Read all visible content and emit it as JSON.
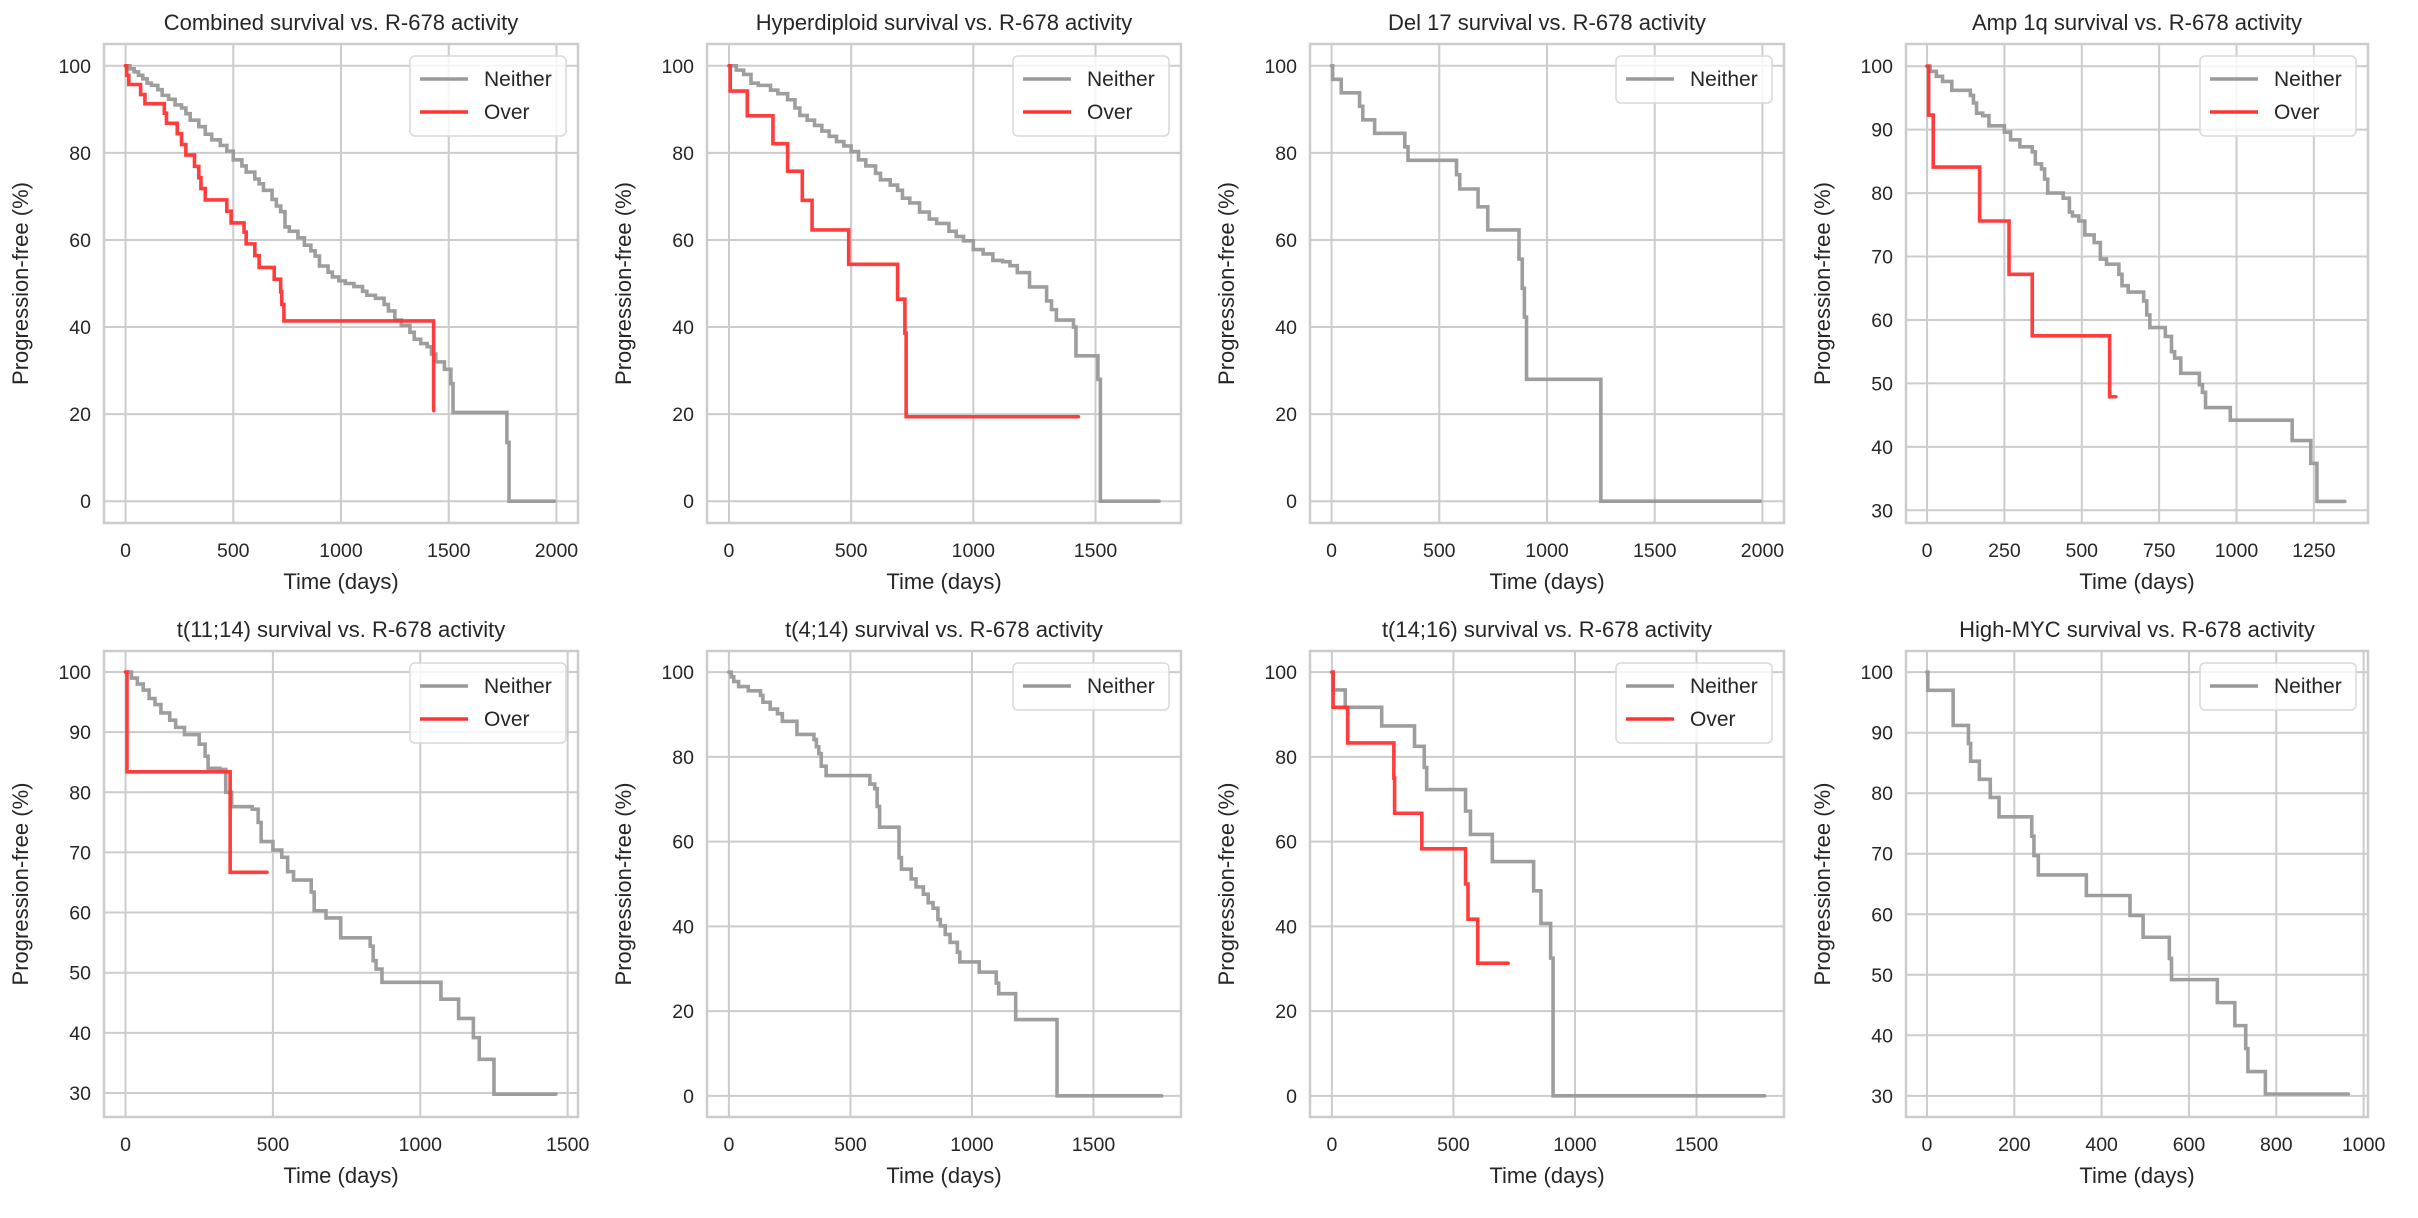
{
  "figure": {
    "colors": {
      "Neither": "#999999",
      "Over": "#ff3333",
      "grid": "#cccccc"
    }
  },
  "chart_data": [
    {
      "type": "line",
      "title": "Combined survival vs. R-678 activity",
      "xlabel": "Time (days)",
      "ylabel": "Progression-free (%)",
      "xlim": [
        -100,
        2100
      ],
      "ylim": [
        -5,
        105
      ],
      "xticks": [
        0,
        500,
        1000,
        1500,
        2000
      ],
      "yticks": [
        0,
        20,
        40,
        60,
        80,
        100
      ],
      "grid": true,
      "legend": "top-right",
      "series": [
        {
          "name": "Neither",
          "step": true,
          "x": [
            0,
            20,
            40,
            60,
            80,
            100,
            120,
            150,
            170,
            200,
            230,
            260,
            280,
            300,
            340,
            370,
            400,
            440,
            470,
            500,
            540,
            560,
            600,
            620,
            640,
            680,
            700,
            720,
            740,
            760,
            800,
            830,
            860,
            880,
            900,
            940,
            960,
            990,
            1020,
            1060,
            1100,
            1120,
            1160,
            1200,
            1220,
            1250,
            1280,
            1320,
            1340,
            1370,
            1400,
            1420,
            1440,
            1480,
            1500,
            1510,
            1520,
            1760,
            1770,
            1780,
            1990
          ],
          "y": [
            100,
            99.3,
            98.6,
            97.8,
            97,
            96,
            95.5,
            94.5,
            93.2,
            92.3,
            91,
            90.3,
            89,
            87.5,
            86,
            84.3,
            83,
            81.7,
            80.4,
            78.4,
            77,
            75.6,
            74,
            72.9,
            71.4,
            69.3,
            67.8,
            66.5,
            63,
            62,
            60.5,
            58.8,
            57.5,
            56.3,
            54,
            52.6,
            51.5,
            50.6,
            50,
            49.3,
            48.2,
            47.3,
            46.6,
            45.2,
            43.7,
            41.6,
            40.4,
            38.8,
            37.2,
            36.2,
            35.5,
            33.8,
            32,
            30.3,
            30.3,
            27,
            20.4,
            20.4,
            13.5,
            0,
            0
          ]
        },
        {
          "name": "Over",
          "step": true,
          "x": [
            0,
            5,
            15,
            70,
            90,
            180,
            190,
            240,
            260,
            280,
            320,
            340,
            350,
            370,
            470,
            490,
            550,
            560,
            600,
            620,
            690,
            720,
            725,
            735,
            1430
          ],
          "y": [
            100,
            97.8,
            95.7,
            93.4,
            91.3,
            89.1,
            86.8,
            84.4,
            81.9,
            79.5,
            76.9,
            74.3,
            71.8,
            69.2,
            66.6,
            63.9,
            61.8,
            59.1,
            56.4,
            53.7,
            51,
            48.1,
            45.2,
            41.4,
            20.8
          ]
        }
      ]
    },
    {
      "type": "line",
      "title": "Hyperdiploid survival vs. R-678 activity",
      "xlabel": "Time (days)",
      "ylabel": "Progression-free (%)",
      "xlim": [
        -90,
        1850
      ],
      "ylim": [
        -5,
        105
      ],
      "xticks": [
        0,
        500,
        1000,
        1500
      ],
      "yticks": [
        0,
        20,
        40,
        60,
        80,
        100
      ],
      "grid": true,
      "legend": "top-right",
      "series": [
        {
          "name": "Neither",
          "step": true,
          "x": [
            0,
            30,
            60,
            90,
            120,
            170,
            200,
            240,
            270,
            290,
            320,
            350,
            380,
            410,
            440,
            470,
            500,
            530,
            560,
            600,
            620,
            660,
            690,
            710,
            740,
            780,
            820,
            850,
            900,
            930,
            960,
            1000,
            1040,
            1080,
            1120,
            1150,
            1180,
            1230,
            1270,
            1300,
            1320,
            1340,
            1360,
            1400,
            1410,
            1420,
            1500,
            1510,
            1520,
            1760
          ],
          "y": [
            100,
            99,
            98,
            96,
            95.5,
            94.4,
            93.6,
            92.2,
            90.3,
            88.6,
            87.5,
            86.3,
            85,
            83.8,
            82.6,
            81.6,
            80.3,
            78.4,
            77,
            75.3,
            73.8,
            72.6,
            71.4,
            69.6,
            68.5,
            66.4,
            64.8,
            63.8,
            62,
            60.8,
            59.8,
            57.8,
            56.8,
            55.3,
            55,
            54.1,
            52.5,
            49.2,
            49.2,
            46,
            44,
            41.6,
            41.6,
            41.6,
            40,
            33.4,
            33.4,
            28,
            0,
            0
          ]
        },
        {
          "name": "Over",
          "step": true,
          "x": [
            0,
            5,
            75,
            180,
            240,
            300,
            340,
            490,
            690,
            720,
            725,
            1430
          ],
          "y": [
            100,
            94.2,
            88.5,
            82.1,
            75.8,
            69.1,
            62.3,
            54.4,
            46.4,
            38.6,
            19.4,
            19.4
          ]
        }
      ]
    },
    {
      "type": "line",
      "title": "Del 17 survival vs. R-678 activity",
      "xlabel": "Time (days)",
      "ylabel": "Progression-free (%)",
      "xlim": [
        -100,
        2100
      ],
      "ylim": [
        -5,
        105
      ],
      "xticks": [
        0,
        500,
        1000,
        1500,
        2000
      ],
      "yticks": [
        0,
        20,
        40,
        60,
        80,
        100
      ],
      "grid": true,
      "legend": "top-right",
      "series": [
        {
          "name": "Neither",
          "step": true,
          "x": [
            0,
            5,
            45,
            130,
            145,
            200,
            340,
            355,
            375,
            580,
            595,
            680,
            725,
            870,
            885,
            895,
            905,
            915,
            1250,
            1990
          ],
          "y": [
            100,
            96.9,
            93.8,
            90.7,
            87.6,
            84.5,
            81.4,
            78.3,
            78.3,
            75,
            71.7,
            67.6,
            62.3,
            55.6,
            48.9,
            42.3,
            28,
            28,
            0,
            0
          ]
        }
      ]
    },
    {
      "type": "line",
      "title": "Amp 1q survival vs. R-678 activity",
      "xlabel": "Time (days)",
      "ylabel": "Progression-free (%)",
      "xlim": [
        -68,
        1425
      ],
      "ylim": [
        28,
        103.5
      ],
      "xticks": [
        0,
        250,
        500,
        750,
        1000,
        1250
      ],
      "yticks": [
        30,
        40,
        50,
        60,
        70,
        80,
        90,
        100
      ],
      "grid": true,
      "legend": "top-right",
      "series": [
        {
          "name": "Neither",
          "step": true,
          "x": [
            0,
            10,
            30,
            50,
            80,
            140,
            150,
            160,
            180,
            200,
            250,
            270,
            300,
            340,
            350,
            370,
            380,
            390,
            420,
            440,
            460,
            470,
            490,
            510,
            540,
            560,
            580,
            600,
            620,
            630,
            650,
            700,
            710,
            720,
            740,
            770,
            790,
            800,
            820,
            840,
            880,
            890,
            900,
            980,
            1180,
            1240,
            1260,
            1350
          ],
          "y": [
            100,
            99.2,
            98.4,
            97.6,
            96.2,
            95.4,
            94.2,
            92.6,
            92.2,
            90.6,
            89.6,
            88.4,
            87.3,
            86.5,
            84.6,
            83.8,
            82.2,
            80,
            80,
            79.2,
            77,
            76.4,
            75.6,
            73.4,
            72.2,
            69.6,
            68.8,
            68.8,
            67.2,
            65.4,
            64.4,
            63,
            60.8,
            58.8,
            58.8,
            57.4,
            55,
            54,
            51.6,
            51.6,
            49.8,
            48.6,
            46.2,
            44.2,
            41,
            37.4,
            31.4,
            31.4
          ],
          "yfix": true
        },
        {
          "name": "Over",
          "step": true,
          "x": [
            0,
            5,
            20,
            170,
            265,
            340,
            590,
            610
          ],
          "y": [
            100,
            92.3,
            84.1,
            75.6,
            67.2,
            57.5,
            47.9,
            47.9
          ]
        }
      ]
    },
    {
      "type": "line",
      "title": "t(11;14) survival vs. R-678 activity",
      "xlabel": "Time (days)",
      "ylabel": "Progression-free (%)",
      "xlim": [
        -73,
        1535
      ],
      "ylim": [
        26,
        103.5
      ],
      "xticks": [
        0,
        500,
        1000,
        1500
      ],
      "yticks": [
        30,
        40,
        50,
        60,
        70,
        80,
        90,
        100
      ],
      "grid": true,
      "legend": "top-right",
      "series": [
        {
          "name": "Neither",
          "step": true,
          "x": [
            0,
            20,
            40,
            60,
            80,
            100,
            120,
            150,
            170,
            200,
            250,
            270,
            280,
            320,
            340,
            360,
            430,
            450,
            460,
            500,
            530,
            550,
            570,
            630,
            640,
            680,
            730,
            740,
            830,
            840,
            850,
            870,
            1070,
            1130,
            1180,
            1200,
            1250,
            1460
          ],
          "y": [
            100,
            99,
            98,
            97,
            95.6,
            94.6,
            93.2,
            92,
            90.8,
            89.6,
            88,
            86,
            84,
            83.8,
            80,
            77.6,
            77.2,
            75,
            71.8,
            70.4,
            69.2,
            66.8,
            65.4,
            63.4,
            60.3,
            59.1,
            55.8,
            55.8,
            54.4,
            52,
            50.6,
            48.4,
            45.6,
            42.4,
            39.2,
            35.6,
            29.8,
            29.8
          ]
        },
        {
          "name": "Over",
          "step": true,
          "x": [
            0,
            5,
            355,
            480
          ],
          "y": [
            100,
            83.4,
            66.7,
            66.7
          ]
        }
      ]
    },
    {
      "type": "line",
      "title": "t(4;14) survival vs. R-678 activity",
      "xlabel": "Time (days)",
      "ylabel": "Progression-free (%)",
      "xlim": [
        -90,
        1860
      ],
      "ylim": [
        -5,
        105
      ],
      "xticks": [
        0,
        500,
        1000,
        1500
      ],
      "yticks": [
        0,
        20,
        40,
        60,
        80,
        100
      ],
      "grid": true,
      "legend": "top-right",
      "series": [
        {
          "name": "Neither",
          "step": true,
          "x": [
            0,
            10,
            20,
            40,
            80,
            130,
            140,
            170,
            200,
            220,
            280,
            350,
            360,
            370,
            380,
            400,
            450,
            580,
            600,
            610,
            620,
            700,
            710,
            720,
            750,
            770,
            800,
            820,
            840,
            860,
            870,
            890,
            910,
            940,
            950,
            1000,
            1030,
            1100,
            1110,
            1130,
            1180,
            1350,
            1780
          ],
          "y": [
            100,
            98.9,
            97.8,
            96.6,
            95.6,
            94.5,
            92.9,
            91.3,
            90.2,
            88.4,
            85.3,
            84.1,
            82.4,
            80.8,
            77.8,
            75.6,
            75.6,
            73.6,
            72.5,
            68.3,
            63.4,
            56.2,
            53.5,
            53.5,
            51.2,
            49.3,
            47.6,
            45.6,
            44.3,
            41.6,
            40.1,
            38.1,
            36.2,
            33.9,
            31.6,
            31.6,
            29.2,
            26.6,
            24.1,
            24.1,
            18,
            0,
            0
          ]
        }
      ]
    },
    {
      "type": "line",
      "title": "t(14;16) survival vs. R-678 activity",
      "xlabel": "Time (days)",
      "ylabel": "Progression-free (%)",
      "xlim": [
        -90,
        1860
      ],
      "ylim": [
        -5,
        105
      ],
      "xticks": [
        0,
        500,
        1000,
        1500
      ],
      "yticks": [
        0,
        20,
        40,
        60,
        80,
        100
      ],
      "grid": true,
      "legend": "top-right",
      "series": [
        {
          "name": "Neither",
          "step": true,
          "x": [
            0,
            5,
            55,
            205,
            340,
            380,
            390,
            550,
            570,
            660,
            830,
            860,
            900,
            910,
            1780
          ],
          "y": [
            100,
            95.8,
            91.7,
            87.3,
            82.5,
            77.5,
            72.3,
            67.2,
            61.7,
            55.3,
            48.4,
            40.7,
            32.5,
            0,
            0
          ]
        },
        {
          "name": "Over",
          "step": true,
          "x": [
            0,
            5,
            65,
            255,
            258,
            370,
            550,
            552,
            560,
            600,
            725
          ],
          "y": [
            100,
            91.7,
            83.3,
            75,
            66.7,
            58.3,
            50,
            50,
            41.7,
            31.3,
            31.3
          ]
        }
      ]
    },
    {
      "type": "line",
      "title": "High-MYC survival vs. R-678 activity",
      "xlabel": "Time (days)",
      "ylabel": "Progression-free (%)",
      "xlim": [
        -48,
        1010
      ],
      "ylim": [
        26.5,
        103.5
      ],
      "xticks": [
        0,
        200,
        400,
        600,
        800,
        1000
      ],
      "yticks": [
        30,
        40,
        50,
        60,
        70,
        80,
        90,
        100
      ],
      "grid": true,
      "legend": "top-right",
      "series": [
        {
          "name": "Neither",
          "step": true,
          "x": [
            0,
            2,
            60,
            95,
            100,
            120,
            145,
            165,
            240,
            245,
            255,
            365,
            465,
            495,
            555,
            560,
            665,
            705,
            730,
            735,
            775,
            965
          ],
          "y": [
            100,
            97,
            91.2,
            88.2,
            85.3,
            82.3,
            79.3,
            76.1,
            72.9,
            69.7,
            66.5,
            63.1,
            59.8,
            56.2,
            52.7,
            49.2,
            45.4,
            41.6,
            37.8,
            34,
            30.3,
            30.3
          ]
        }
      ]
    }
  ]
}
